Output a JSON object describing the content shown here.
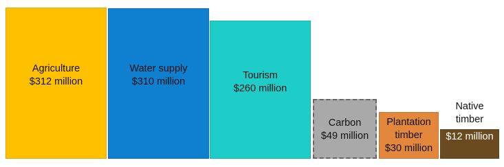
{
  "chart_data": {
    "type": "bar",
    "categories": [
      "Agriculture",
      "Water supply",
      "Tourism",
      "Carbon",
      "Plantation timber",
      "Native timber"
    ],
    "values": [
      312,
      310,
      260,
      49,
      30,
      12
    ],
    "value_labels": [
      "$312 million",
      "$310 million",
      "$260 million",
      "$49 million",
      "$30 million",
      "$12 million"
    ],
    "colors": [
      "#ffc000",
      "#0f7fd0",
      "#1ecdc8",
      "#a9a9a9",
      "#e2873c",
      "#6a4a1f"
    ]
  }
}
